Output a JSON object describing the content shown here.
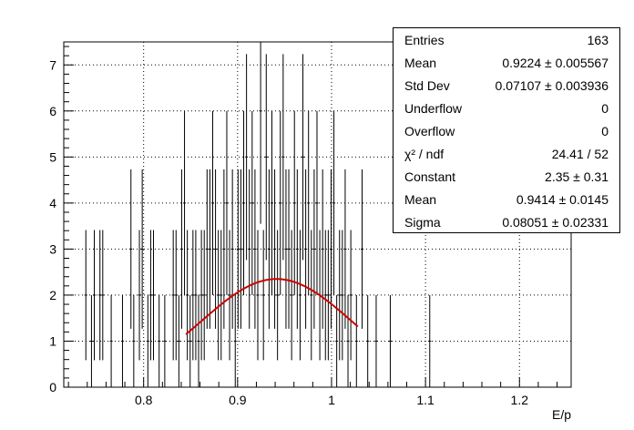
{
  "chart_data": {
    "type": "histogram",
    "xlabel": "E/p",
    "ylabel": "",
    "xlim": [
      0.715,
      1.255
    ],
    "ylim": [
      0,
      7.5
    ],
    "xticks": [
      0.8,
      0.9,
      1,
      1.1,
      1.2
    ],
    "xtick_labels": [
      "0.8",
      "0.9",
      "1",
      "1.1",
      "1.2"
    ],
    "yticks": [
      0,
      1,
      2,
      3,
      4,
      5,
      6,
      7
    ],
    "ytick_labels": [
      "0",
      "1",
      "2",
      "3",
      "4",
      "5",
      "6",
      "7"
    ],
    "grid": true,
    "bin_width": 0.003,
    "bins": [
      {
        "x": 0.7385,
        "y": 2
      },
      {
        "x": 0.7445,
        "y": 1
      },
      {
        "x": 0.7475,
        "y": 2
      },
      {
        "x": 0.7535,
        "y": 2
      },
      {
        "x": 0.7565,
        "y": 2
      },
      {
        "x": 0.7655,
        "y": 1
      },
      {
        "x": 0.7775,
        "y": 1
      },
      {
        "x": 0.7865,
        "y": 3
      },
      {
        "x": 0.7895,
        "y": 1
      },
      {
        "x": 0.7955,
        "y": 2
      },
      {
        "x": 0.7985,
        "y": 3
      },
      {
        "x": 0.8045,
        "y": 1
      },
      {
        "x": 0.8075,
        "y": 2
      },
      {
        "x": 0.8105,
        "y": 2
      },
      {
        "x": 0.8165,
        "y": 1
      },
      {
        "x": 0.8225,
        "y": 1
      },
      {
        "x": 0.8315,
        "y": 2
      },
      {
        "x": 0.8345,
        "y": 2
      },
      {
        "x": 0.8375,
        "y": 1
      },
      {
        "x": 0.8405,
        "y": 3
      },
      {
        "x": 0.8435,
        "y": 4
      },
      {
        "x": 0.8465,
        "y": 2
      },
      {
        "x": 0.8495,
        "y": 1
      },
      {
        "x": 0.8525,
        "y": 2
      },
      {
        "x": 0.8555,
        "y": 2
      },
      {
        "x": 0.8585,
        "y": 1
      },
      {
        "x": 0.8615,
        "y": 2
      },
      {
        "x": 0.8645,
        "y": 2
      },
      {
        "x": 0.8675,
        "y": 3
      },
      {
        "x": 0.8705,
        "y": 3
      },
      {
        "x": 0.8735,
        "y": 4
      },
      {
        "x": 0.8765,
        "y": 3
      },
      {
        "x": 0.8795,
        "y": 2
      },
      {
        "x": 0.8825,
        "y": 2
      },
      {
        "x": 0.8855,
        "y": 3
      },
      {
        "x": 0.8885,
        "y": 4
      },
      {
        "x": 0.8915,
        "y": 2
      },
      {
        "x": 0.8945,
        "y": 3
      },
      {
        "x": 0.8975,
        "y": 1
      },
      {
        "x": 0.9005,
        "y": 3
      },
      {
        "x": 0.9035,
        "y": 3
      },
      {
        "x": 0.9065,
        "y": 4
      },
      {
        "x": 0.9095,
        "y": 5
      },
      {
        "x": 0.9125,
        "y": 3
      },
      {
        "x": 0.9155,
        "y": 4
      },
      {
        "x": 0.9185,
        "y": 3
      },
      {
        "x": 0.9215,
        "y": 2
      },
      {
        "x": 0.9245,
        "y": 6
      },
      {
        "x": 0.9275,
        "y": 2
      },
      {
        "x": 0.9305,
        "y": 5
      },
      {
        "x": 0.9335,
        "y": 3
      },
      {
        "x": 0.9365,
        "y": 4
      },
      {
        "x": 0.9395,
        "y": 3
      },
      {
        "x": 0.9425,
        "y": 2
      },
      {
        "x": 0.9455,
        "y": 4
      },
      {
        "x": 0.9485,
        "y": 5
      },
      {
        "x": 0.9515,
        "y": 3
      },
      {
        "x": 0.9545,
        "y": 3
      },
      {
        "x": 0.9575,
        "y": 2
      },
      {
        "x": 0.9605,
        "y": 4
      },
      {
        "x": 0.9635,
        "y": 3
      },
      {
        "x": 0.9665,
        "y": 2
      },
      {
        "x": 0.9695,
        "y": 5
      },
      {
        "x": 0.9725,
        "y": 3
      },
      {
        "x": 0.9755,
        "y": 4
      },
      {
        "x": 0.9785,
        "y": 2
      },
      {
        "x": 0.9815,
        "y": 3
      },
      {
        "x": 0.9845,
        "y": 4
      },
      {
        "x": 0.9875,
        "y": 2
      },
      {
        "x": 0.9905,
        "y": 3
      },
      {
        "x": 0.9935,
        "y": 2
      },
      {
        "x": 0.9965,
        "y": 2
      },
      {
        "x": 0.9995,
        "y": 3
      },
      {
        "x": 1.0025,
        "y": 4
      },
      {
        "x": 1.0055,
        "y": 1
      },
      {
        "x": 1.0085,
        "y": 2
      },
      {
        "x": 1.0115,
        "y": 2
      },
      {
        "x": 1.0145,
        "y": 3
      },
      {
        "x": 1.0175,
        "y": 1
      },
      {
        "x": 1.0205,
        "y": 2
      },
      {
        "x": 1.0265,
        "y": 1
      },
      {
        "x": 1.0325,
        "y": 3
      },
      {
        "x": 1.0385,
        "y": 1
      },
      {
        "x": 1.0475,
        "y": 1
      },
      {
        "x": 1.0625,
        "y": 1
      },
      {
        "x": 1.1045,
        "y": 1
      }
    ],
    "fit": {
      "type": "gaus",
      "color": "#cc0000",
      "range": [
        0.845,
        1.028
      ],
      "constant": 2.35,
      "mean": 0.9414,
      "sigma": 0.08051
    }
  },
  "stats": [
    {
      "label": "Entries",
      "value": "163"
    },
    {
      "label": "Mean",
      "value": "0.9224 ± 0.005567"
    },
    {
      "label": "Std Dev",
      "value": "0.07107 ± 0.003936"
    },
    {
      "label": "Underflow",
      "value": "0"
    },
    {
      "label": "Overflow",
      "value": "0"
    },
    {
      "label": "χ² / ndf",
      "value": "24.41 / 52"
    },
    {
      "label": "Constant",
      "value": "2.35 ± 0.31"
    },
    {
      "label": "Mean",
      "value": "0.9414 ± 0.0145"
    },
    {
      "label": "Sigma",
      "value": "0.08051 ± 0.02331"
    }
  ]
}
